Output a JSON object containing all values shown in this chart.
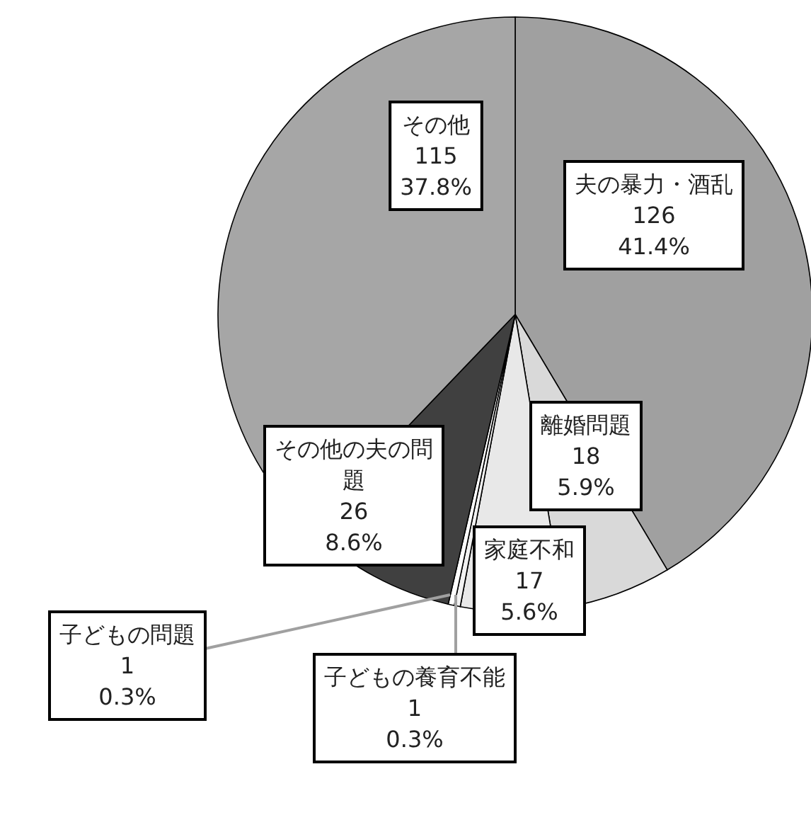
{
  "chart_data": {
    "type": "pie",
    "categories": [
      "夫の暴力・酒乱",
      "離婚問題",
      "家庭不和",
      "子どもの養育不能",
      "子どもの問題",
      "その他の夫の問題",
      "その他"
    ],
    "values": [
      126,
      18,
      17,
      1,
      1,
      26,
      115
    ],
    "value_labels": [
      "126\n41.4%",
      "18\n5.9%",
      "17\n5.6%",
      "1\n0.3%",
      "1\n0.3%",
      "26\n8.6%",
      "115\n37.8%"
    ],
    "colors": [
      "#a0a0a0",
      "#d9d9d9",
      "#e8e8e8",
      "#f2f2f2",
      "#ffffff",
      "#404040",
      "#a6a6a6"
    ]
  }
}
